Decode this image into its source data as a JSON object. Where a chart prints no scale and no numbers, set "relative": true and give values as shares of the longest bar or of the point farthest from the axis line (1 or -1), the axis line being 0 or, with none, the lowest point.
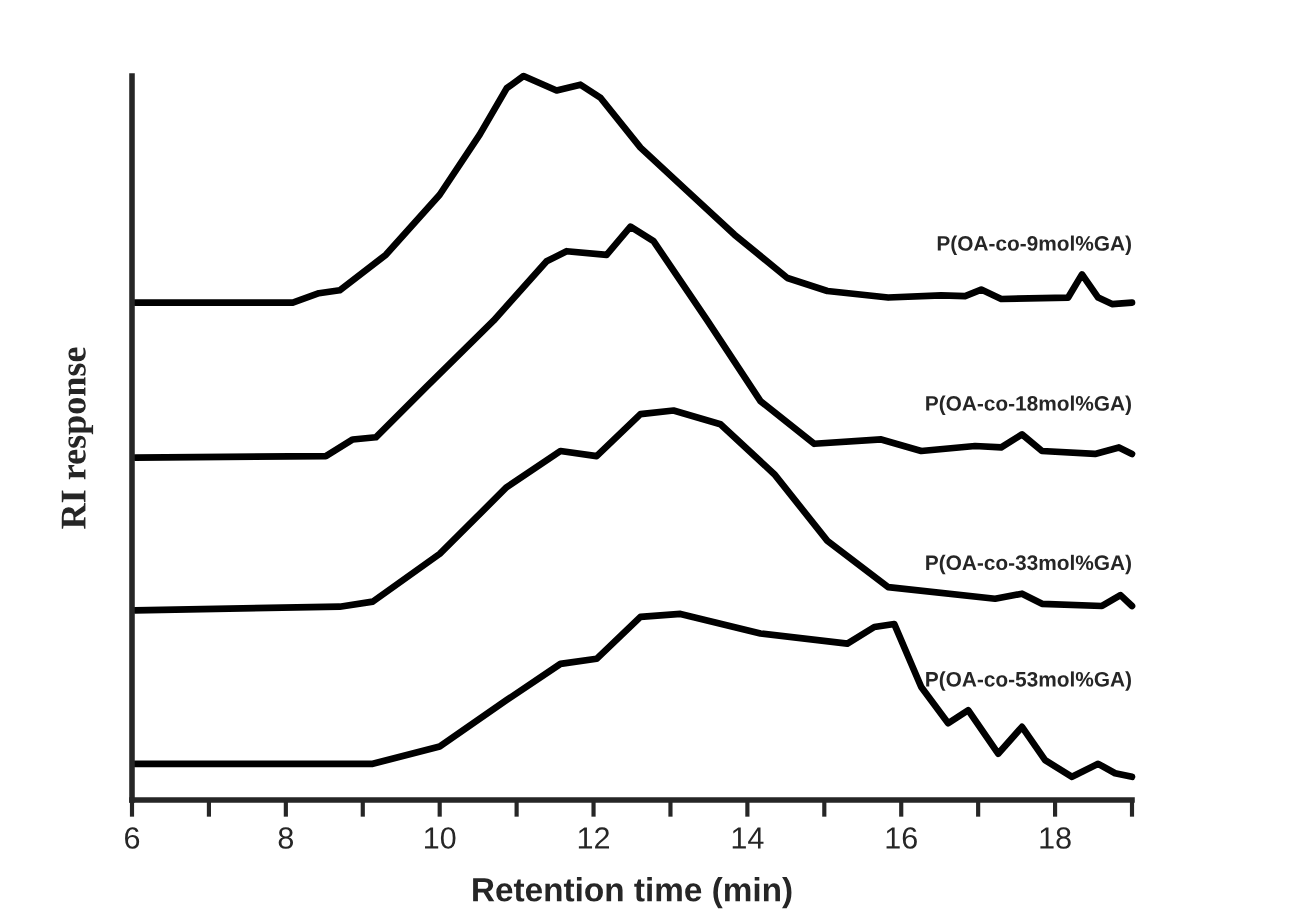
{
  "chart_data": {
    "type": "line",
    "relative": true,
    "xlabel": "Retention time (min)",
    "ylabel": "RI response",
    "xlim": [
      6,
      19
    ],
    "xticks": [
      6,
      {
        "value": 7,
        "label": null
      },
      8,
      {
        "value": 9,
        "label": null
      },
      10,
      {
        "value": 11,
        "label": null
      },
      12,
      {
        "value": 13,
        "label": null
      },
      14,
      {
        "value": 15,
        "label": null
      },
      16,
      {
        "value": 17,
        "label": null
      },
      18,
      {
        "value": 19,
        "label": null
      }
    ],
    "grid": false,
    "legend": false,
    "marker": "none",
    "line_style": "solid",
    "series": [
      {
        "name": "P(OA-co-9mol%GA)",
        "color": "#000000",
        "x": [
          6.04,
          8.09,
          8.43,
          8.7,
          9.3,
          10.0,
          10.52,
          10.87,
          11.09,
          11.52,
          11.83,
          12.09,
          12.61,
          13.22,
          13.83,
          14.52,
          15.04,
          15.83,
          16.52,
          16.83,
          17.04,
          17.3,
          18.17,
          18.35,
          18.56,
          18.74,
          19.0
        ],
        "values": [
          0.687,
          0.687,
          0.7,
          0.704,
          0.753,
          0.836,
          0.919,
          0.983,
          1.0,
          0.98,
          0.988,
          0.97,
          0.901,
          0.841,
          0.781,
          0.721,
          0.703,
          0.694,
          0.697,
          0.696,
          0.705,
          0.692,
          0.694,
          0.726,
          0.694,
          0.685,
          0.687
        ]
      },
      {
        "name": "P(OA-co-18mol%GA)",
        "color": "#000000",
        "x": [
          6.04,
          8.52,
          8.87,
          9.17,
          9.82,
          10.7,
          11.39,
          11.65,
          12.17,
          12.48,
          12.78,
          13.48,
          14.17,
          14.87,
          15.74,
          16.26,
          16.96,
          17.3,
          17.57,
          17.83,
          18.52,
          18.83,
          19.0
        ],
        "values": [
          0.473,
          0.475,
          0.498,
          0.501,
          0.57,
          0.662,
          0.744,
          0.758,
          0.753,
          0.792,
          0.772,
          0.662,
          0.551,
          0.492,
          0.498,
          0.482,
          0.489,
          0.487,
          0.505,
          0.482,
          0.478,
          0.487,
          0.478
        ]
      },
      {
        "name": "P(OA-co-33mol%GA)",
        "color": "#000000",
        "x": [
          6.04,
          8.7,
          9.13,
          10.0,
          10.87,
          11.57,
          12.04,
          12.61,
          13.04,
          13.65,
          14.35,
          15.04,
          15.83,
          17.22,
          17.57,
          17.83,
          18.61,
          18.85,
          19.0
        ],
        "values": [
          0.262,
          0.267,
          0.274,
          0.34,
          0.432,
          0.482,
          0.475,
          0.533,
          0.538,
          0.519,
          0.45,
          0.358,
          0.294,
          0.278,
          0.285,
          0.271,
          0.268,
          0.283,
          0.268
        ]
      },
      {
        "name": "P(OA-co-53mol%GA)",
        "color": "#000000",
        "x": [
          6.04,
          9.13,
          10.0,
          10.87,
          11.57,
          12.04,
          12.61,
          13.13,
          14.17,
          15.3,
          15.65,
          15.91,
          16.26,
          16.61,
          16.87,
          17.26,
          17.57,
          17.87,
          18.22,
          18.56,
          18.78,
          19.0
        ],
        "values": [
          0.05,
          0.05,
          0.074,
          0.138,
          0.188,
          0.195,
          0.253,
          0.257,
          0.23,
          0.216,
          0.239,
          0.243,
          0.156,
          0.106,
          0.124,
          0.064,
          0.101,
          0.055,
          0.032,
          0.05,
          0.037,
          0.032
        ]
      }
    ]
  }
}
